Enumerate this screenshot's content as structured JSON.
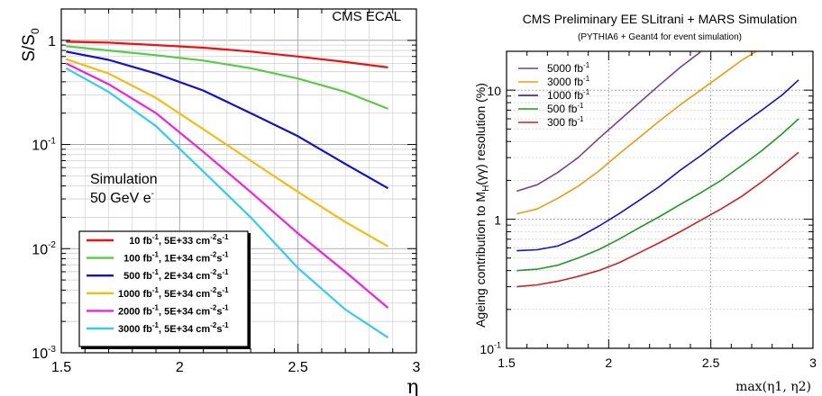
{
  "chart_data": [
    {
      "type": "line",
      "title": "CMS ECAL",
      "xlabel": "η",
      "ylabel": "S/S",
      "ylabel_sub": "0",
      "x_scale": "linear",
      "y_scale": "log",
      "xlim": [
        1.5,
        3.0
      ],
      "ylim": [
        0.001,
        2.0
      ],
      "x_ticks": [
        "1.5",
        "2",
        "2.5",
        "3"
      ],
      "y_ticks": [
        {
          "value": 1,
          "base": "1",
          "exp": ""
        },
        {
          "value": 0.1,
          "base": "10",
          "exp": "-1"
        },
        {
          "value": 0.01,
          "base": "10",
          "exp": "-2"
        },
        {
          "value": 0.001,
          "base": "10",
          "exp": "-3"
        }
      ],
      "grid": true,
      "legend_position": "bottom-left",
      "annotation_line1": "Simulation",
      "annotation_line2": "50 GeV e",
      "annotation_line2_sup": "-",
      "series": [
        {
          "name_lumi": "10 fb",
          "name_rate": ", 5E+33 cm",
          "color": "#ee1111",
          "x": [
            1.52,
            1.7,
            1.9,
            2.1,
            2.3,
            2.5,
            2.7,
            2.88
          ],
          "y": [
            0.97,
            0.95,
            0.9,
            0.85,
            0.78,
            0.7,
            0.62,
            0.55
          ]
        },
        {
          "name_lumi": "100 fb",
          "name_rate": ", 1E+34 cm",
          "color": "#55cc44",
          "x": [
            1.52,
            1.7,
            1.9,
            2.1,
            2.3,
            2.5,
            2.7,
            2.88
          ],
          "y": [
            0.88,
            0.8,
            0.72,
            0.64,
            0.54,
            0.43,
            0.32,
            0.22
          ]
        },
        {
          "name_lumi": "500 fb",
          "name_rate": ", 2E+34 cm",
          "color": "#1111cc",
          "x": [
            1.52,
            1.7,
            1.9,
            2.1,
            2.3,
            2.5,
            2.7,
            2.88
          ],
          "y": [
            0.78,
            0.65,
            0.48,
            0.33,
            0.2,
            0.12,
            0.065,
            0.038
          ]
        },
        {
          "name_lumi": "1000 fb",
          "name_rate": ", 5E+34 cm",
          "color": "#f4bb11",
          "x": [
            1.52,
            1.7,
            1.9,
            2.1,
            2.3,
            2.5,
            2.7,
            2.88
          ],
          "y": [
            0.66,
            0.48,
            0.28,
            0.14,
            0.07,
            0.035,
            0.018,
            0.0105
          ]
        },
        {
          "name_lumi": "2000 fb",
          "name_rate": ", 5E+34 cm",
          "color": "#ee22dd",
          "x": [
            1.52,
            1.7,
            1.9,
            2.1,
            2.3,
            2.5,
            2.7,
            2.88
          ],
          "y": [
            0.6,
            0.38,
            0.2,
            0.085,
            0.035,
            0.014,
            0.006,
            0.0027
          ]
        },
        {
          "name_lumi": "3000 fb",
          "name_rate": ", 5E+34 cm",
          "color": "#33ccee",
          "x": [
            1.52,
            1.7,
            1.9,
            2.1,
            2.3,
            2.5,
            2.7,
            2.88
          ],
          "y": [
            0.54,
            0.32,
            0.15,
            0.055,
            0.02,
            0.0065,
            0.0026,
            0.0014
          ]
        }
      ],
      "legend_units": {
        "lumi_sup": "-1",
        "rate_sup1": "-2",
        "rate_mid": "s",
        "rate_sup2": "-1"
      }
    },
    {
      "type": "line",
      "title": "CMS Preliminary EE SLitrani + MARS Simulation",
      "subtitle": "(PYTHIA6 + Geant4 for event simulation)",
      "xlabel": "max(η1, η2)",
      "ylabel": "Ageing contribution to M",
      "ylabel_sub": "H",
      "ylabel_tail": "(γγ) resolution (%)",
      "x_scale": "linear",
      "y_scale": "log",
      "xlim": [
        1.5,
        3.0
      ],
      "ylim": [
        0.1,
        20
      ],
      "x_ticks": [
        "1.5",
        "2",
        "2.5",
        "3"
      ],
      "y_ticks": [
        {
          "value": 10,
          "base": "10",
          "exp": ""
        },
        {
          "value": 1,
          "base": "1",
          "exp": ""
        },
        {
          "value": 0.1,
          "base": "10",
          "exp": "-1"
        }
      ],
      "grid": true,
      "legend_position": "top-left",
      "series": [
        {
          "name": "5000 fb",
          "color": "#774488",
          "x": [
            1.55,
            1.65,
            1.75,
            1.85,
            1.95,
            2.05,
            2.15,
            2.25,
            2.35,
            2.45
          ],
          "y": [
            1.65,
            1.85,
            2.3,
            3.0,
            4.2,
            5.8,
            8.0,
            11.0,
            15.0,
            19.8
          ]
        },
        {
          "name": "3000 fb",
          "color": "#ee9911",
          "x": [
            1.55,
            1.65,
            1.75,
            1.85,
            1.95,
            2.05,
            2.15,
            2.25,
            2.35,
            2.45,
            2.55,
            2.65,
            2.72
          ],
          "y": [
            1.1,
            1.2,
            1.45,
            1.8,
            2.35,
            3.2,
            4.3,
            5.8,
            7.7,
            10.0,
            13.0,
            17.0,
            19.8
          ]
        },
        {
          "name": "1000 fb",
          "color": "#1111cc",
          "x": [
            1.55,
            1.65,
            1.75,
            1.85,
            1.95,
            2.05,
            2.15,
            2.25,
            2.35,
            2.45,
            2.55,
            2.65,
            2.75,
            2.85,
            2.93
          ],
          "y": [
            0.57,
            0.58,
            0.62,
            0.72,
            0.88,
            1.1,
            1.4,
            1.8,
            2.4,
            3.1,
            4.1,
            5.4,
            7.0,
            9.2,
            12.0
          ]
        },
        {
          "name": "500 fb",
          "color": "#229922",
          "x": [
            1.55,
            1.65,
            1.75,
            1.85,
            1.95,
            2.05,
            2.15,
            2.25,
            2.35,
            2.45,
            2.55,
            2.65,
            2.75,
            2.85,
            2.93
          ],
          "y": [
            0.4,
            0.41,
            0.44,
            0.5,
            0.58,
            0.7,
            0.86,
            1.05,
            1.3,
            1.6,
            2.0,
            2.6,
            3.4,
            4.6,
            6.0
          ]
        },
        {
          "name": "300 fb",
          "color": "#cc2222",
          "x": [
            1.55,
            1.65,
            1.75,
            1.85,
            1.95,
            2.05,
            2.15,
            2.25,
            2.35,
            2.45,
            2.55,
            2.65,
            2.75,
            2.85,
            2.93
          ],
          "y": [
            0.3,
            0.31,
            0.33,
            0.36,
            0.4,
            0.46,
            0.55,
            0.66,
            0.8,
            0.98,
            1.2,
            1.5,
            1.95,
            2.6,
            3.3
          ]
        }
      ],
      "legend_units": {
        "lumi_sup": "-1"
      }
    }
  ]
}
